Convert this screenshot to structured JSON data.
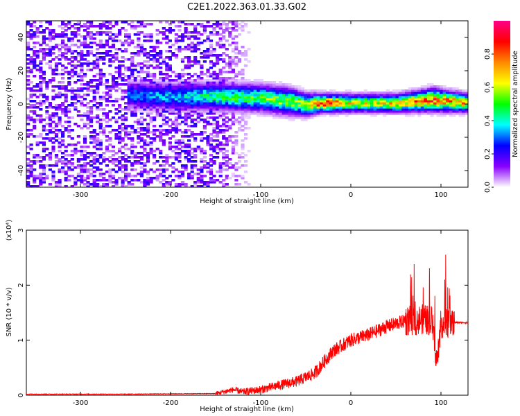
{
  "title": "C2E1.2022.363.01.33.G02",
  "chart_data": [
    {
      "type": "heatmap",
      "xlabel": "Height of straight line (km)",
      "ylabel": "Frequency (Hz)",
      "xlim": [
        -360,
        130
      ],
      "ylim": [
        -50,
        50
      ],
      "xticks": [
        -300,
        -200,
        -100,
        0,
        100
      ],
      "yticks": [
        -40,
        -20,
        0,
        20,
        40
      ],
      "colorbar": {
        "label": "Normalized spectral amplitude",
        "range": [
          0,
          1
        ],
        "ticks": [
          "0.0",
          "0.2",
          "0.4",
          "0.6",
          "0.8"
        ],
        "colors": [
          "#ffffff",
          "#8800ff",
          "#0000ff",
          "#00ffff",
          "#00ff00",
          "#ffff00",
          "#ff8800",
          "#ff0000",
          "#ff0088"
        ]
      },
      "ridge": [
        {
          "x": -245,
          "center": 5,
          "width": 6,
          "amp": 0.3
        },
        {
          "x": -200,
          "center": 4,
          "width": 6,
          "amp": 0.35
        },
        {
          "x": -150,
          "center": 4,
          "width": 6,
          "amp": 0.45
        },
        {
          "x": -100,
          "center": 3,
          "width": 6,
          "amp": 0.5
        },
        {
          "x": -70,
          "center": 1,
          "width": 6,
          "amp": 0.55
        },
        {
          "x": -50,
          "center": -1,
          "width": 5,
          "amp": 0.55
        },
        {
          "x": -35,
          "center": 0,
          "width": 4,
          "amp": 0.85
        },
        {
          "x": 0,
          "center": 0,
          "width": 4,
          "amp": 0.6
        },
        {
          "x": 50,
          "center": 0,
          "width": 4,
          "amp": 0.65
        },
        {
          "x": 90,
          "center": 2,
          "width": 5,
          "amp": 0.8
        },
        {
          "x": 130,
          "center": 0,
          "width": 4,
          "amp": 0.65
        }
      ],
      "noise_region": [
        -360,
        -150
      ]
    },
    {
      "type": "line",
      "xlabel": "Height of straight line (km)",
      "ylabel": "SNR (10 * v/v)",
      "y_multiplier": "(x10⁴)",
      "xlim": [
        -360,
        130
      ],
      "ylim": [
        0,
        3
      ],
      "xticks": [
        -300,
        -200,
        -100,
        0,
        100
      ],
      "yticks": [
        0,
        1,
        2,
        3
      ],
      "color": "#ff0000",
      "x": [
        -360,
        -250,
        -150,
        -130,
        -120,
        -100,
        -80,
        -60,
        -40,
        -30,
        -20,
        -10,
        0,
        20,
        40,
        60,
        80,
        90,
        95,
        100,
        110,
        130
      ],
      "y": [
        0.02,
        0.02,
        0.03,
        0.1,
        0.06,
        0.1,
        0.18,
        0.25,
        0.4,
        0.6,
        0.8,
        0.9,
        1.0,
        1.1,
        1.25,
        1.35,
        1.38,
        1.35,
        0.6,
        1.3,
        1.32,
        1.32
      ]
    }
  ]
}
